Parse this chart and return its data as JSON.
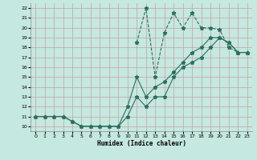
{
  "bg_color": "#c5e8e0",
  "grid_color": "#c8a0a0",
  "line_color": "#2a6e60",
  "xlabel": "Humidex (Indice chaleur)",
  "xlim": [
    -0.5,
    23.5
  ],
  "ylim": [
    9.5,
    22.5
  ],
  "xticks": [
    0,
    1,
    2,
    3,
    4,
    5,
    6,
    7,
    8,
    9,
    10,
    11,
    12,
    13,
    14,
    15,
    16,
    17,
    18,
    19,
    20,
    21,
    22,
    23
  ],
  "yticks": [
    10,
    11,
    12,
    13,
    14,
    15,
    16,
    17,
    18,
    19,
    20,
    21,
    22
  ],
  "line1_x": [
    0,
    1,
    2,
    3,
    4,
    5,
    6,
    7,
    8,
    9,
    10,
    11,
    12,
    13,
    14,
    15,
    16,
    17,
    18,
    19,
    20,
    21,
    22,
    23
  ],
  "line1_y": [
    11,
    11,
    11,
    11,
    10.5,
    10,
    10,
    10,
    10,
    10,
    11,
    13,
    12,
    13,
    13,
    15,
    16,
    16.5,
    17,
    18,
    19,
    18.5,
    17.5,
    17.5
  ],
  "line2_x": [
    0,
    1,
    2,
    3,
    4,
    5,
    6,
    7,
    8,
    9,
    10,
    11,
    12,
    13,
    14,
    15,
    16,
    17,
    18,
    19,
    20,
    21,
    22,
    23
  ],
  "line2_y": [
    11,
    11,
    11,
    11,
    10.5,
    10,
    10,
    10,
    10,
    10,
    12,
    15,
    13,
    14,
    14.5,
    15.5,
    16.5,
    17.5,
    18,
    19,
    19,
    18.5,
    17.5,
    17.5
  ],
  "line3_x": [
    11,
    12,
    13,
    14,
    15,
    16,
    17,
    18,
    19,
    20,
    21,
    22,
    23
  ],
  "line3_y": [
    18.5,
    22,
    15,
    19.5,
    21.5,
    20,
    21.5,
    20,
    20,
    19.8,
    18,
    17.5,
    17.5
  ],
  "marker": "*",
  "markersize": 3.5,
  "linewidth": 0.8
}
